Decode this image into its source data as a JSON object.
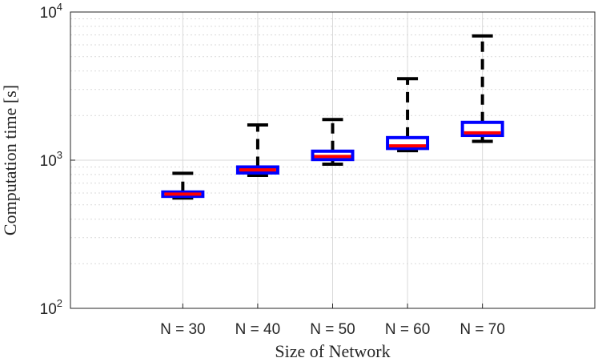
{
  "chart_data": {
    "type": "box",
    "title": "",
    "xlabel": "Size of Network",
    "ylabel": "Computation time [s]",
    "yscale": "log",
    "ylim": [
      100,
      10000
    ],
    "grid": true,
    "yticks": [
      {
        "value": 100,
        "base": "10",
        "exp": "2"
      },
      {
        "value": 1000,
        "base": "10",
        "exp": "3"
      },
      {
        "value": 10000,
        "base": "10",
        "exp": "4"
      }
    ],
    "categories": [
      "N = 30",
      "N = 40",
      "N = 50",
      "N = 60",
      "N = 70"
    ],
    "boxes": [
      {
        "category": "N = 30",
        "min": 555,
        "q1": 570,
        "median": 590,
        "q3": 610,
        "max": 815
      },
      {
        "category": "N = 40",
        "min": 790,
        "q1": 820,
        "median": 860,
        "q3": 900,
        "max": 1730
      },
      {
        "category": "N = 50",
        "min": 940,
        "q1": 1010,
        "median": 1060,
        "q3": 1150,
        "max": 1880
      },
      {
        "category": "N = 60",
        "min": 1160,
        "q1": 1200,
        "median": 1250,
        "q3": 1420,
        "max": 3550
      },
      {
        "category": "N = 70",
        "min": 1340,
        "q1": 1470,
        "median": 1530,
        "q3": 1800,
        "max": 6900
      }
    ],
    "colors": {
      "box": "#0000ff",
      "median": "#ff0000",
      "whisker": "#000000",
      "grid": "#d9d9d9",
      "axis": "#262626"
    }
  }
}
